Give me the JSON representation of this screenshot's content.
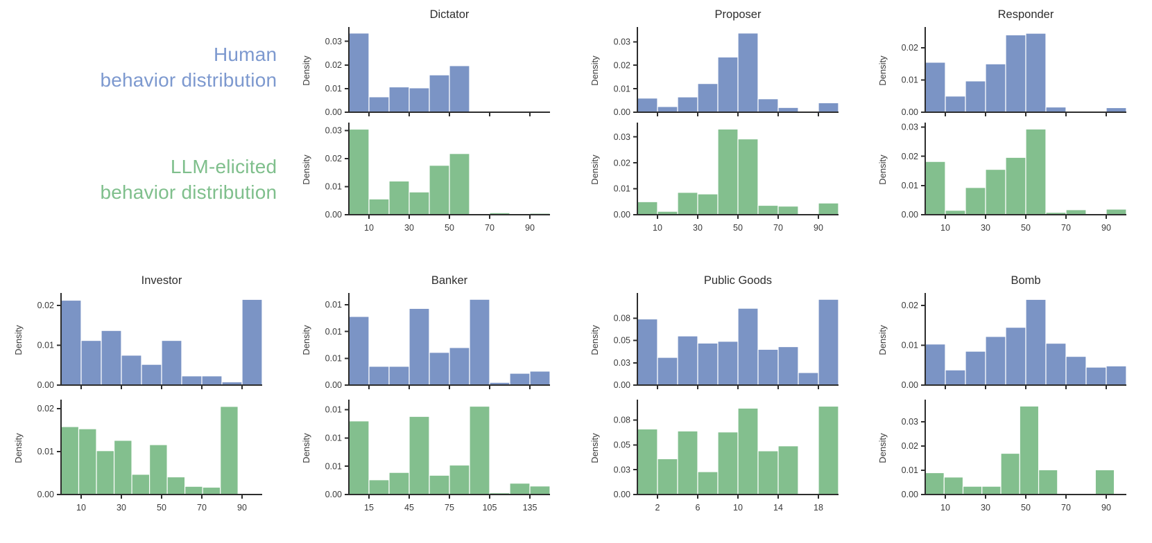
{
  "labels": {
    "human_line1": "Human",
    "human_line2": "behavior distribution",
    "llm_line1": "LLM-elicited",
    "llm_line2": "behavior distribution"
  },
  "colors": {
    "human_bar": "#7b94c5",
    "llm_bar": "#83bf8e",
    "human_label_text": "#7d99cf",
    "llm_label_text": "#7fbf8c",
    "axis": "#2d2d2d",
    "tick_text": "#3a3a3a",
    "title_text": "#2e2e2e",
    "bar_edge": "#ffffff"
  },
  "chart_data": [
    {
      "id": "dictator-human",
      "type": "bar",
      "game": "Dictator",
      "distribution": "human",
      "title": "Dictator",
      "ylabel": "Density",
      "xlim": [
        0,
        100
      ],
      "bin_start": 0,
      "bin_width": 10,
      "values": [
        0.0335,
        0.0065,
        0.0107,
        0.0103,
        0.0158,
        0.0197,
        0.0004,
        0,
        0,
        0
      ],
      "ylim": [
        0,
        0.0352
      ],
      "yticks": [
        {
          "v": 0,
          "label": "0.00"
        },
        {
          "v": 0.01,
          "label": "0.01"
        },
        {
          "v": 0.02,
          "label": "0.02"
        },
        {
          "v": 0.03,
          "label": "0.03"
        }
      ],
      "xticks": [
        {
          "v": 10,
          "label": "10"
        },
        {
          "v": 30,
          "label": "30"
        },
        {
          "v": 50,
          "label": "50"
        },
        {
          "v": 70,
          "label": "70"
        },
        {
          "v": 90,
          "label": "90"
        }
      ]
    },
    {
      "id": "dictator-llm",
      "type": "bar",
      "game": "Dictator",
      "distribution": "llm",
      "title": null,
      "ylabel": "Density",
      "xlim": [
        0,
        100
      ],
      "bin_start": 0,
      "bin_width": 10,
      "values": [
        0.0305,
        0.0056,
        0.012,
        0.0081,
        0.0176,
        0.0218,
        0.0003,
        0.0007,
        0,
        0.0005
      ],
      "ylim": [
        0,
        0.0321
      ],
      "yticks": [
        {
          "v": 0,
          "label": "0.00"
        },
        {
          "v": 0.01,
          "label": "0.01"
        },
        {
          "v": 0.02,
          "label": "0.02"
        },
        {
          "v": 0.03,
          "label": "0.03"
        }
      ],
      "xticks": [
        {
          "v": 10,
          "label": "10"
        },
        {
          "v": 30,
          "label": "30"
        },
        {
          "v": 50,
          "label": "50"
        },
        {
          "v": 70,
          "label": "70"
        },
        {
          "v": 90,
          "label": "90"
        }
      ]
    },
    {
      "id": "proposer-human",
      "type": "bar",
      "game": "Proposer",
      "distribution": "human",
      "title": "Proposer",
      "ylabel": "Density",
      "xlim": [
        0,
        100
      ],
      "bin_start": 0,
      "bin_width": 10,
      "values": [
        0.006,
        0.0024,
        0.0065,
        0.0122,
        0.0235,
        0.0337,
        0.0057,
        0.002,
        0,
        0.004
      ],
      "ylim": [
        0,
        0.0354
      ],
      "yticks": [
        {
          "v": 0,
          "label": "0.00"
        },
        {
          "v": 0.01,
          "label": "0.01"
        },
        {
          "v": 0.02,
          "label": "0.02"
        },
        {
          "v": 0.03,
          "label": "0.03"
        }
      ],
      "xticks": [
        {
          "v": 10,
          "label": "10"
        },
        {
          "v": 30,
          "label": "30"
        },
        {
          "v": 50,
          "label": "50"
        },
        {
          "v": 70,
          "label": "70"
        },
        {
          "v": 90,
          "label": "90"
        }
      ]
    },
    {
      "id": "proposer-llm",
      "type": "bar",
      "game": "Proposer",
      "distribution": "llm",
      "title": null,
      "ylabel": "Density",
      "xlim": [
        0,
        100
      ],
      "bin_start": 0,
      "bin_width": 10,
      "values": [
        0.005,
        0.0013,
        0.0086,
        0.008,
        0.033,
        0.0292,
        0.0036,
        0.0033,
        0,
        0.0045
      ],
      "ylim": [
        0,
        0.0347
      ],
      "yticks": [
        {
          "v": 0,
          "label": "0.00"
        },
        {
          "v": 0.01,
          "label": "0.01"
        },
        {
          "v": 0.02,
          "label": "0.02"
        },
        {
          "v": 0.03,
          "label": "0.03"
        }
      ],
      "xticks": [
        {
          "v": 10,
          "label": "10"
        },
        {
          "v": 30,
          "label": "30"
        },
        {
          "v": 50,
          "label": "50"
        },
        {
          "v": 70,
          "label": "70"
        },
        {
          "v": 90,
          "label": "90"
        }
      ]
    },
    {
      "id": "responder-human",
      "type": "bar",
      "game": "Responder",
      "distribution": "human",
      "title": "Responder",
      "ylabel": "Density",
      "xlim": [
        0,
        100
      ],
      "bin_start": 0,
      "bin_width": 10,
      "values": [
        0.0155,
        0.005,
        0.0097,
        0.015,
        0.024,
        0.0245,
        0.0016,
        0.0003,
        0,
        0.0014
      ],
      "ylim": [
        0,
        0.0258
      ],
      "yticks": [
        {
          "v": 0,
          "label": "0.00"
        },
        {
          "v": 0.01,
          "label": "0.01"
        },
        {
          "v": 0.02,
          "label": "0.02"
        }
      ],
      "xticks": [
        {
          "v": 10,
          "label": "10"
        },
        {
          "v": 30,
          "label": "30"
        },
        {
          "v": 50,
          "label": "50"
        },
        {
          "v": 70,
          "label": "70"
        },
        {
          "v": 90,
          "label": "90"
        }
      ]
    },
    {
      "id": "responder-llm",
      "type": "bar",
      "game": "Responder",
      "distribution": "llm",
      "title": null,
      "ylabel": "Density",
      "xlim": [
        0,
        100
      ],
      "bin_start": 0,
      "bin_width": 10,
      "values": [
        0.0182,
        0.0015,
        0.0093,
        0.0155,
        0.0196,
        0.0293,
        0.0008,
        0.0017,
        0,
        0.0019
      ],
      "ylim": [
        0,
        0.0308
      ],
      "yticks": [
        {
          "v": 0,
          "label": "0.00"
        },
        {
          "v": 0.01,
          "label": "0.01"
        },
        {
          "v": 0.02,
          "label": "0.02"
        },
        {
          "v": 0.03,
          "label": "0.03"
        }
      ],
      "xticks": [
        {
          "v": 10,
          "label": "10"
        },
        {
          "v": 30,
          "label": "30"
        },
        {
          "v": 50,
          "label": "50"
        },
        {
          "v": 70,
          "label": "70"
        },
        {
          "v": 90,
          "label": "90"
        }
      ]
    },
    {
      "id": "investor-human",
      "type": "bar",
      "game": "Investor",
      "distribution": "human",
      "title": "Investor",
      "ylabel": "Density",
      "xlim": [
        0,
        100
      ],
      "bin_start": 0,
      "bin_width": 10,
      "values": [
        0.0213,
        0.0112,
        0.0137,
        0.0075,
        0.0052,
        0.0112,
        0.0023,
        0.0023,
        0.0008,
        0.0215
      ],
      "ylim": [
        0,
        0.0226
      ],
      "yticks": [
        {
          "v": 0,
          "label": "0.00"
        },
        {
          "v": 0.01,
          "label": "0.01"
        },
        {
          "v": 0.02,
          "label": "0.02"
        }
      ],
      "xticks": [
        {
          "v": 10,
          "label": "10"
        },
        {
          "v": 30,
          "label": "30"
        },
        {
          "v": 50,
          "label": "50"
        },
        {
          "v": 70,
          "label": "70"
        },
        {
          "v": 90,
          "label": "90"
        }
      ]
    },
    {
      "id": "investor-llm",
      "type": "bar",
      "game": "Investor",
      "distribution": "llm",
      "title": null,
      "ylabel": "Density",
      "xlim": [
        0,
        100
      ],
      "bin_start": 0,
      "bin_width": 8.8,
      "values": [
        0.0158,
        0.0153,
        0.0102,
        0.0126,
        0.0047,
        0.0116,
        0.0041,
        0.0019,
        0.0017,
        0.0205
      ],
      "ylim": [
        0,
        0.0216
      ],
      "yticks": [
        {
          "v": 0,
          "label": "0.00"
        },
        {
          "v": 0.01,
          "label": "0.01"
        },
        {
          "v": 0.02,
          "label": "0.02"
        }
      ],
      "xticks": [
        {
          "v": 10,
          "label": "10"
        },
        {
          "v": 30,
          "label": "30"
        },
        {
          "v": 50,
          "label": "50"
        },
        {
          "v": 70,
          "label": "70"
        },
        {
          "v": 90,
          "label": "90"
        }
      ]
    },
    {
      "id": "banker-human",
      "type": "bar",
      "game": "Banker",
      "distribution": "human",
      "title": "Banker",
      "ylabel": "Density",
      "xlim": [
        0,
        150
      ],
      "bin_start": 0,
      "bin_width": 15,
      "values": [
        0.0128,
        0.0035,
        0.0035,
        0.0143,
        0.0061,
        0.007,
        0.016,
        0.0005,
        0.0022,
        0.0026
      ],
      "ylim": [
        0,
        0.0168
      ],
      "yticks": [
        {
          "v": 0,
          "label": "0.00"
        },
        {
          "v": 0.005,
          "label": "0.01"
        },
        {
          "v": 0.01,
          "label": "0.01"
        },
        {
          "v": 0.015,
          "label": "0.01"
        }
      ],
      "xticks": [
        {
          "v": 15,
          "label": "15"
        },
        {
          "v": 45,
          "label": "45"
        },
        {
          "v": 75,
          "label": "75"
        },
        {
          "v": 105,
          "label": "105"
        },
        {
          "v": 135,
          "label": "135"
        }
      ]
    },
    {
      "id": "banker-llm",
      "type": "bar",
      "game": "Banker",
      "distribution": "llm",
      "title": null,
      "ylabel": "Density",
      "xlim": [
        0,
        150
      ],
      "bin_start": 0,
      "bin_width": 15,
      "values": [
        0.013,
        0.0026,
        0.0039,
        0.0138,
        0.0034,
        0.0052,
        0.0156,
        0.0003,
        0.002,
        0.0015
      ],
      "ylim": [
        0,
        0.0164
      ],
      "yticks": [
        {
          "v": 0,
          "label": "0.00"
        },
        {
          "v": 0.005,
          "label": "0.01"
        },
        {
          "v": 0.01,
          "label": "0.01"
        },
        {
          "v": 0.015,
          "label": "0.01"
        }
      ],
      "xticks": [
        {
          "v": 15,
          "label": "15"
        },
        {
          "v": 45,
          "label": "45"
        },
        {
          "v": 75,
          "label": "75"
        },
        {
          "v": 105,
          "label": "105"
        },
        {
          "v": 135,
          "label": "135"
        }
      ]
    },
    {
      "id": "publicgoods-human",
      "type": "bar",
      "game": "Public Goods",
      "distribution": "human",
      "title": "Public Goods",
      "ylabel": "Density",
      "xlim": [
        0,
        20
      ],
      "bin_start": 0,
      "bin_width": 2,
      "values": [
        0.074,
        0.031,
        0.055,
        0.047,
        0.049,
        0.086,
        0.04,
        0.043,
        0.014,
        0.096
      ],
      "ylim": [
        0,
        0.1008
      ],
      "yticks": [
        {
          "v": 0,
          "label": "0.00"
        },
        {
          "v": 0.025,
          "label": "0.03"
        },
        {
          "v": 0.05,
          "label": "0.05"
        },
        {
          "v": 0.075,
          "label": "0.08"
        }
      ],
      "xticks": [
        {
          "v": 2,
          "label": "2"
        },
        {
          "v": 6,
          "label": "6"
        },
        {
          "v": 10,
          "label": "10"
        },
        {
          "v": 14,
          "label": "14"
        },
        {
          "v": 18,
          "label": "18"
        }
      ]
    },
    {
      "id": "publicgoods-llm",
      "type": "bar",
      "game": "Public Goods",
      "distribution": "llm",
      "title": null,
      "ylabel": "Density",
      "xlim": [
        0,
        20
      ],
      "bin_start": 0,
      "bin_width": 2,
      "values": [
        0.066,
        0.036,
        0.064,
        0.023,
        0.063,
        0.087,
        0.044,
        0.049,
        0.001,
        0.089
      ],
      "ylim": [
        0,
        0.0935
      ],
      "yticks": [
        {
          "v": 0,
          "label": "0.00"
        },
        {
          "v": 0.025,
          "label": "0.03"
        },
        {
          "v": 0.05,
          "label": "0.05"
        },
        {
          "v": 0.075,
          "label": "0.08"
        }
      ],
      "xticks": [
        {
          "v": 2,
          "label": "2"
        },
        {
          "v": 6,
          "label": "6"
        },
        {
          "v": 10,
          "label": "10"
        },
        {
          "v": 14,
          "label": "14"
        },
        {
          "v": 18,
          "label": "18"
        }
      ]
    },
    {
      "id": "bomb-human",
      "type": "bar",
      "game": "Bomb",
      "distribution": "human",
      "title": "Bomb",
      "ylabel": "Density",
      "xlim": [
        0,
        100
      ],
      "bin_start": 0,
      "bin_width": 10,
      "values": [
        0.0103,
        0.0038,
        0.0085,
        0.0122,
        0.0145,
        0.0215,
        0.0105,
        0.0072,
        0.0045,
        0.0048
      ],
      "ylim": [
        0,
        0.0226
      ],
      "yticks": [
        {
          "v": 0,
          "label": "0.00"
        },
        {
          "v": 0.01,
          "label": "0.01"
        },
        {
          "v": 0.02,
          "label": "0.02"
        }
      ],
      "xticks": [
        {
          "v": 10,
          "label": "10"
        },
        {
          "v": 30,
          "label": "30"
        },
        {
          "v": 50,
          "label": "50"
        },
        {
          "v": 70,
          "label": "70"
        },
        {
          "v": 90,
          "label": "90"
        }
      ]
    },
    {
      "id": "bomb-llm",
      "type": "bar",
      "game": "Bomb",
      "distribution": "llm",
      "title": null,
      "ylabel": "Density",
      "xlim": [
        0,
        100
      ],
      "bin_start": 0,
      "bin_width": 9.4,
      "values": [
        0.009,
        0.0072,
        0.0034,
        0.0034,
        0.017,
        0.0365,
        0.0102,
        0,
        0,
        0.0102
      ],
      "ylim": [
        0,
        0.0383
      ],
      "yticks": [
        {
          "v": 0,
          "label": "0.00"
        },
        {
          "v": 0.01,
          "label": "0.01"
        },
        {
          "v": 0.02,
          "label": "0.02"
        },
        {
          "v": 0.03,
          "label": "0.03"
        }
      ],
      "xticks": [
        {
          "v": 10,
          "label": "10"
        },
        {
          "v": 30,
          "label": "30"
        },
        {
          "v": 50,
          "label": "50"
        },
        {
          "v": 70,
          "label": "70"
        },
        {
          "v": 90,
          "label": "90"
        }
      ]
    }
  ]
}
